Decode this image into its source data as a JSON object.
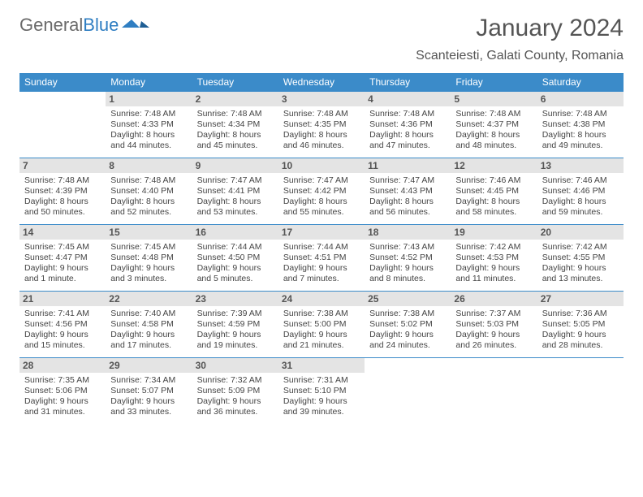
{
  "brand": {
    "part1": "General",
    "part2": "Blue"
  },
  "title": "January 2024",
  "location": "Scanteiesti, Galati County, Romania",
  "colors": {
    "header_bg": "#3b8bc9",
    "header_fg": "#ffffff",
    "daynum_bg": "#e4e4e4",
    "rule": "#3b8bc9",
    "logo_gray": "#6a6a6a",
    "logo_blue": "#2f7ec2"
  },
  "days_of_week": [
    "Sunday",
    "Monday",
    "Tuesday",
    "Wednesday",
    "Thursday",
    "Friday",
    "Saturday"
  ],
  "first_weekday_index": 1,
  "cells": [
    {
      "n": 1,
      "sr": "7:48 AM",
      "ss": "4:33 PM",
      "dl": "8 hours and 44 minutes."
    },
    {
      "n": 2,
      "sr": "7:48 AM",
      "ss": "4:34 PM",
      "dl": "8 hours and 45 minutes."
    },
    {
      "n": 3,
      "sr": "7:48 AM",
      "ss": "4:35 PM",
      "dl": "8 hours and 46 minutes."
    },
    {
      "n": 4,
      "sr": "7:48 AM",
      "ss": "4:36 PM",
      "dl": "8 hours and 47 minutes."
    },
    {
      "n": 5,
      "sr": "7:48 AM",
      "ss": "4:37 PM",
      "dl": "8 hours and 48 minutes."
    },
    {
      "n": 6,
      "sr": "7:48 AM",
      "ss": "4:38 PM",
      "dl": "8 hours and 49 minutes."
    },
    {
      "n": 7,
      "sr": "7:48 AM",
      "ss": "4:39 PM",
      "dl": "8 hours and 50 minutes."
    },
    {
      "n": 8,
      "sr": "7:48 AM",
      "ss": "4:40 PM",
      "dl": "8 hours and 52 minutes."
    },
    {
      "n": 9,
      "sr": "7:47 AM",
      "ss": "4:41 PM",
      "dl": "8 hours and 53 minutes."
    },
    {
      "n": 10,
      "sr": "7:47 AM",
      "ss": "4:42 PM",
      "dl": "8 hours and 55 minutes."
    },
    {
      "n": 11,
      "sr": "7:47 AM",
      "ss": "4:43 PM",
      "dl": "8 hours and 56 minutes."
    },
    {
      "n": 12,
      "sr": "7:46 AM",
      "ss": "4:45 PM",
      "dl": "8 hours and 58 minutes."
    },
    {
      "n": 13,
      "sr": "7:46 AM",
      "ss": "4:46 PM",
      "dl": "8 hours and 59 minutes."
    },
    {
      "n": 14,
      "sr": "7:45 AM",
      "ss": "4:47 PM",
      "dl": "9 hours and 1 minute."
    },
    {
      "n": 15,
      "sr": "7:45 AM",
      "ss": "4:48 PM",
      "dl": "9 hours and 3 minutes."
    },
    {
      "n": 16,
      "sr": "7:44 AM",
      "ss": "4:50 PM",
      "dl": "9 hours and 5 minutes."
    },
    {
      "n": 17,
      "sr": "7:44 AM",
      "ss": "4:51 PM",
      "dl": "9 hours and 7 minutes."
    },
    {
      "n": 18,
      "sr": "7:43 AM",
      "ss": "4:52 PM",
      "dl": "9 hours and 8 minutes."
    },
    {
      "n": 19,
      "sr": "7:42 AM",
      "ss": "4:53 PM",
      "dl": "9 hours and 11 minutes."
    },
    {
      "n": 20,
      "sr": "7:42 AM",
      "ss": "4:55 PM",
      "dl": "9 hours and 13 minutes."
    },
    {
      "n": 21,
      "sr": "7:41 AM",
      "ss": "4:56 PM",
      "dl": "9 hours and 15 minutes."
    },
    {
      "n": 22,
      "sr": "7:40 AM",
      "ss": "4:58 PM",
      "dl": "9 hours and 17 minutes."
    },
    {
      "n": 23,
      "sr": "7:39 AM",
      "ss": "4:59 PM",
      "dl": "9 hours and 19 minutes."
    },
    {
      "n": 24,
      "sr": "7:38 AM",
      "ss": "5:00 PM",
      "dl": "9 hours and 21 minutes."
    },
    {
      "n": 25,
      "sr": "7:38 AM",
      "ss": "5:02 PM",
      "dl": "9 hours and 24 minutes."
    },
    {
      "n": 26,
      "sr": "7:37 AM",
      "ss": "5:03 PM",
      "dl": "9 hours and 26 minutes."
    },
    {
      "n": 27,
      "sr": "7:36 AM",
      "ss": "5:05 PM",
      "dl": "9 hours and 28 minutes."
    },
    {
      "n": 28,
      "sr": "7:35 AM",
      "ss": "5:06 PM",
      "dl": "9 hours and 31 minutes."
    },
    {
      "n": 29,
      "sr": "7:34 AM",
      "ss": "5:07 PM",
      "dl": "9 hours and 33 minutes."
    },
    {
      "n": 30,
      "sr": "7:32 AM",
      "ss": "5:09 PM",
      "dl": "9 hours and 36 minutes."
    },
    {
      "n": 31,
      "sr": "7:31 AM",
      "ss": "5:10 PM",
      "dl": "9 hours and 39 minutes."
    }
  ],
  "labels": {
    "sunrise": "Sunrise:",
    "sunset": "Sunset:",
    "daylight": "Daylight:"
  }
}
